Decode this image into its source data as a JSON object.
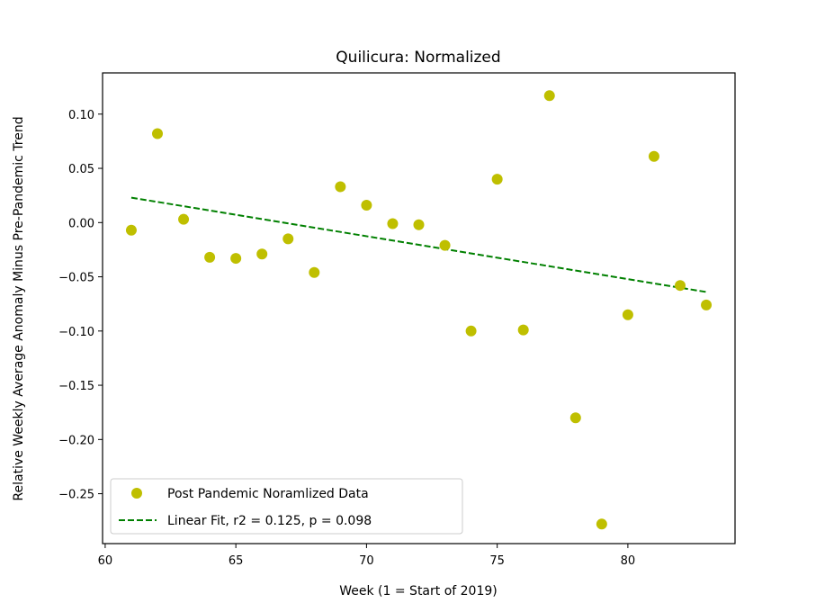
{
  "chart_data": {
    "type": "scatter",
    "title": "Quilicura: Normalized",
    "xlabel": "Week (1 = Start of 2019)",
    "ylabel": "Relative Weekly Average Anomaly Minus Pre-Pandemic Trend",
    "xlim": [
      59.9,
      84.1
    ],
    "ylim": [
      -0.296,
      0.138
    ],
    "xticks": [
      60,
      65,
      70,
      75,
      80
    ],
    "xtick_labels": [
      "60",
      "65",
      "70",
      "75",
      "80"
    ],
    "yticks": [
      0.1,
      0.05,
      0.0,
      -0.05,
      -0.1,
      -0.15,
      -0.2,
      -0.25
    ],
    "ytick_labels": [
      "0.10",
      "0.05",
      "0.00",
      "−0.05",
      "−0.10",
      "−0.15",
      "−0.20",
      "−0.25"
    ],
    "grid": false,
    "legend_position": "lower-left",
    "series": [
      {
        "name": "Post Pandemic Noramlized Data",
        "kind": "scatter",
        "color": "#bfbf00",
        "x": [
          61,
          62,
          63,
          64,
          65,
          66,
          67,
          68,
          69,
          70,
          71,
          72,
          73,
          74,
          75,
          76,
          77,
          78,
          79,
          80,
          81,
          82,
          83
        ],
        "y": [
          -0.007,
          0.082,
          0.003,
          -0.032,
          -0.033,
          -0.029,
          -0.015,
          -0.046,
          0.033,
          0.016,
          -0.001,
          -0.002,
          -0.021,
          -0.1,
          0.04,
          -0.099,
          0.117,
          -0.18,
          -0.278,
          -0.085,
          0.061,
          -0.058,
          -0.076
        ]
      },
      {
        "name": "Linear Fit, r2 = 0.125, p = 0.098",
        "kind": "line",
        "style": "dashed",
        "color": "#008000",
        "x": [
          61,
          83
        ],
        "y": [
          0.023,
          -0.064
        ]
      }
    ]
  }
}
